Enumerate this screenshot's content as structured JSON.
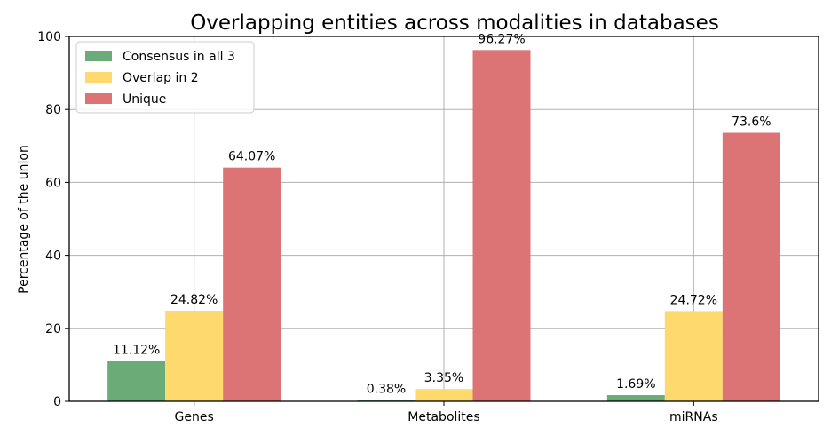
{
  "chart_data": {
    "type": "bar",
    "title": "Overlapping entities across modalities in databases",
    "xlabel": "",
    "ylabel": "Percentage of the union",
    "ylim": [
      0,
      100
    ],
    "yticks": [
      0,
      20,
      40,
      60,
      80,
      100
    ],
    "grid": true,
    "legend_position": "top-left",
    "categories": [
      "Genes",
      "Metabolites",
      "miRNAs"
    ],
    "series": [
      {
        "name": "Consensus in all 3",
        "color": "#6aab77",
        "values": [
          11.12,
          0.38,
          1.69
        ],
        "labels": [
          "11.12%",
          "0.38%",
          "1.69%"
        ]
      },
      {
        "name": "Overlap in 2",
        "color": "#fdd96e",
        "values": [
          24.82,
          3.35,
          24.72
        ],
        "labels": [
          "24.82%",
          "3.35%",
          "24.72%"
        ]
      },
      {
        "name": "Unique",
        "color": "#dc7374",
        "values": [
          64.07,
          96.27,
          73.6
        ],
        "labels": [
          "64.07%",
          "96.27%",
          "73.6%"
        ]
      }
    ]
  }
}
